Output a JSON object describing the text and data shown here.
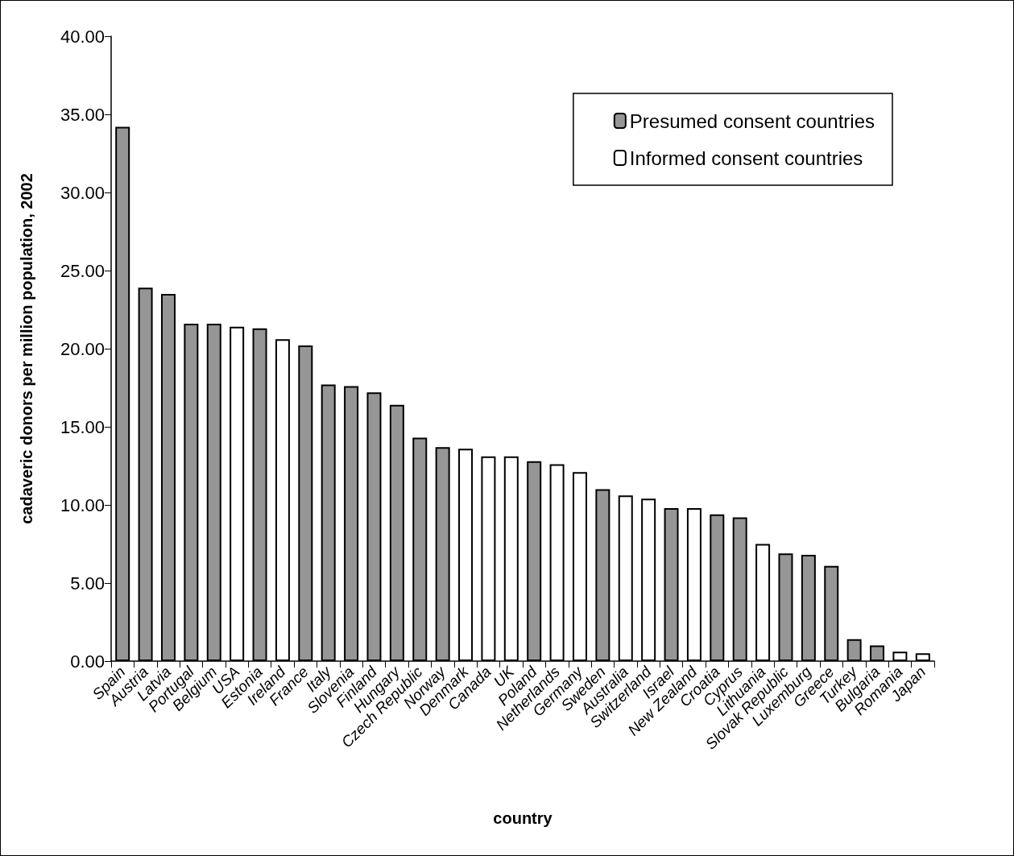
{
  "chart_data": {
    "type": "bar",
    "xlabel": "country",
    "ylabel": "cadaveric donors per million population, 2002",
    "categories": [
      "Spain",
      "Austria",
      "Latvia",
      "Portugal",
      "Belgium",
      "USA",
      "Estonia",
      "Ireland",
      "France",
      "Italy",
      "Slovenia",
      "Finland",
      "Hungary",
      "Czech Republic",
      "Norway",
      "Denmark",
      "Canada",
      "UK",
      "Poland",
      "Netherlands",
      "Germany",
      "Sweden",
      "Australia",
      "Switzerland",
      "Israel",
      "New Zealand",
      "Croatia",
      "Cyprus",
      "Lithuania",
      "Slovak Republic",
      "Luxemburg",
      "Greece",
      "Turkey",
      "Bulgaria",
      "Romania",
      "Japan"
    ],
    "series": [
      {
        "name": "Presumed consent countries",
        "color": "#969696",
        "values": [
          34.2,
          23.9,
          23.5,
          21.6,
          21.6,
          null,
          21.3,
          null,
          20.2,
          17.7,
          17.6,
          17.2,
          16.4,
          14.3,
          13.7,
          null,
          null,
          null,
          12.8,
          null,
          null,
          11.0,
          null,
          null,
          9.8,
          null,
          9.4,
          9.2,
          null,
          6.9,
          6.8,
          6.1,
          1.4,
          1.0,
          null,
          null
        ]
      },
      {
        "name": "Informed consent countries",
        "color": "#ffffff",
        "values": [
          null,
          null,
          null,
          null,
          null,
          21.4,
          null,
          20.6,
          null,
          null,
          null,
          null,
          null,
          null,
          null,
          13.6,
          13.1,
          13.1,
          null,
          12.6,
          12.1,
          null,
          10.6,
          10.4,
          null,
          9.8,
          null,
          null,
          7.5,
          null,
          null,
          null,
          null,
          null,
          0.6,
          0.5
        ]
      }
    ],
    "ylim": [
      0,
      40
    ],
    "yticks": [
      {
        "value": 0,
        "label": "0.00"
      },
      {
        "value": 5,
        "label": "5.00"
      },
      {
        "value": 10,
        "label": "10.00"
      },
      {
        "value": 15,
        "label": "15.00"
      },
      {
        "value": 20,
        "label": "20.00"
      },
      {
        "value": 25,
        "label": "25.00"
      },
      {
        "value": 30,
        "label": "30.00"
      },
      {
        "value": 35,
        "label": "35.00"
      },
      {
        "value": 40,
        "label": "40.00"
      }
    ],
    "grid": false,
    "legend": "top right"
  }
}
